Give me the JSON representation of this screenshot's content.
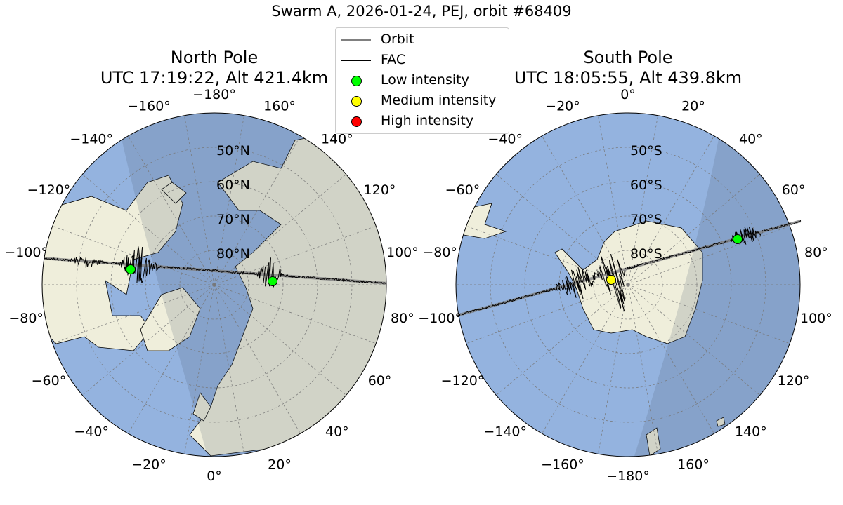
{
  "title": "Swarm A, 2026-01-24, PEJ, orbit #68409",
  "north": {
    "title_line1": "North Pole",
    "title_line2": "UTC 17:19:22, Alt 421.4km",
    "lon_labels": [
      "−180°",
      "160°",
      "140°",
      "120°",
      "100°",
      "80°",
      "60°",
      "40°",
      "20°",
      "0°",
      "−20°",
      "−40°",
      "−60°",
      "−80°",
      "−100°",
      "−120°",
      "−140°",
      "−160°"
    ],
    "lat_labels": [
      "50°N",
      "60°N",
      "70°N",
      "80°N"
    ],
    "markers": [
      {
        "intensity": "low",
        "color": "#00ff00"
      },
      {
        "intensity": "low",
        "color": "#00ff00"
      }
    ]
  },
  "south": {
    "title_line1": "South Pole",
    "title_line2": "UTC 18:05:55, Alt 439.8km",
    "lon_labels": [
      "0°",
      "20°",
      "40°",
      "60°",
      "80°",
      "100°",
      "120°",
      "140°",
      "160°",
      "−180°",
      "−160°",
      "−140°",
      "−120°",
      "−100°",
      "−80°",
      "−60°",
      "−40°",
      "−20°"
    ],
    "lat_labels": [
      "50°S",
      "60°S",
      "70°S",
      "80°S"
    ],
    "markers": [
      {
        "intensity": "low",
        "color": "#00ff00"
      },
      {
        "intensity": "medium",
        "color": "#ffff00"
      }
    ]
  },
  "legend": {
    "items": [
      {
        "label": "Orbit",
        "type": "line",
        "color": "#808080"
      },
      {
        "label": "FAC",
        "type": "line",
        "color": "#000000"
      },
      {
        "label": "Low intensity",
        "type": "dot",
        "color": "#00ff00"
      },
      {
        "label": "Medium intensity",
        "type": "dot",
        "color": "#ffff00"
      },
      {
        "label": "High intensity",
        "type": "dot",
        "color": "#ff0000"
      }
    ]
  },
  "colors": {
    "ocean": "#94b3df",
    "land": "#efeedb",
    "night_shade": "#4a5a70"
  }
}
